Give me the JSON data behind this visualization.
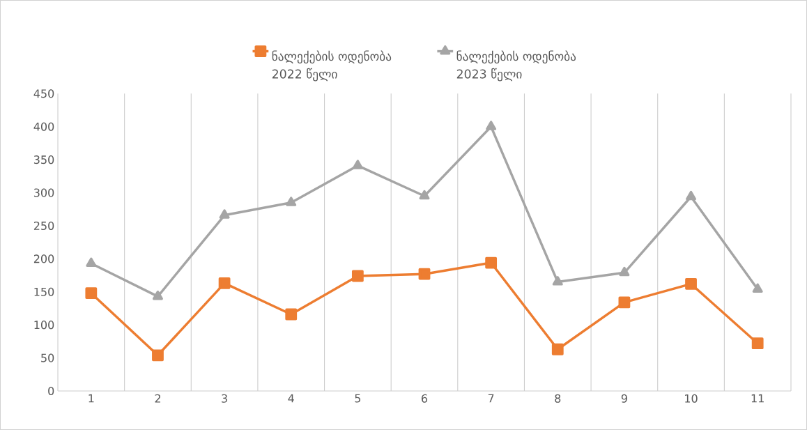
{
  "chart_data": {
    "type": "line",
    "categories": [
      "1",
      "2",
      "3",
      "4",
      "5",
      "6",
      "7",
      "8",
      "9",
      "10",
      "11"
    ],
    "series": [
      {
        "name": "ნალექების ოდენობა 2022 წელი",
        "color": "#ed7d31",
        "marker": "square",
        "values": [
          148,
          54,
          163,
          116,
          174,
          177,
          194,
          63,
          134,
          162,
          72
        ]
      },
      {
        "name": "ნალექების ოდენობა 2023 წელი",
        "color": "#a5a5a5",
        "marker": "triangle",
        "values": [
          193,
          143,
          266,
          285,
          341,
          295,
          400,
          165,
          179,
          294,
          154
        ]
      }
    ],
    "ylim": [
      0,
      450
    ],
    "yticks": [
      0,
      50,
      100,
      150,
      200,
      250,
      300,
      350,
      400,
      450
    ],
    "grid": "x",
    "legend": "top",
    "line_style": "solid"
  }
}
